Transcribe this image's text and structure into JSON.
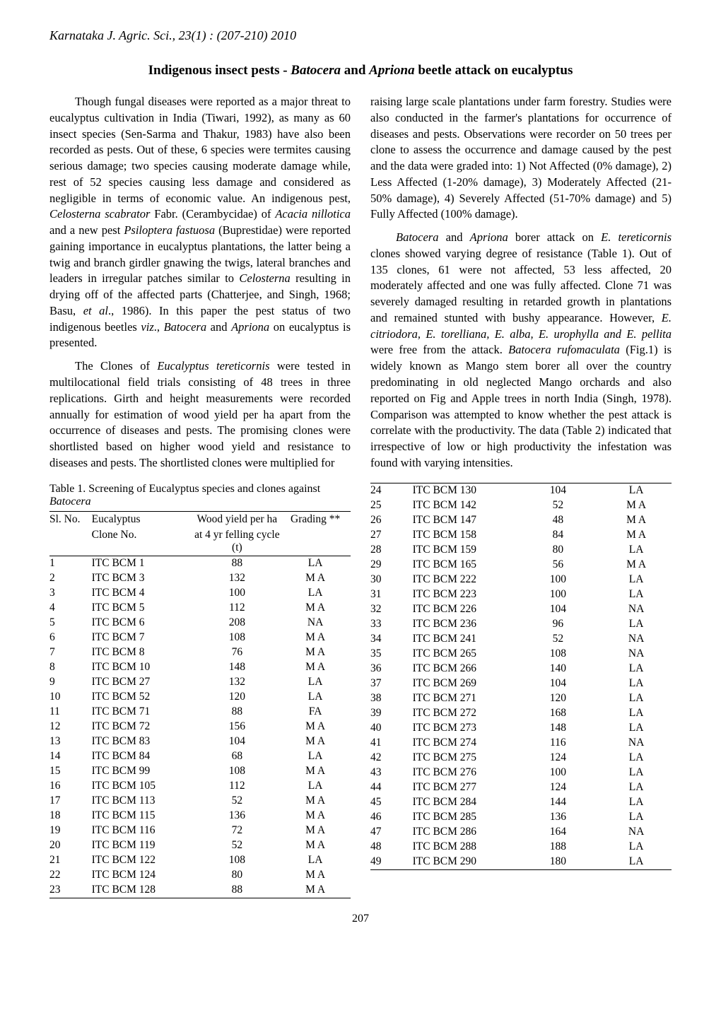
{
  "running_head": "Karnataka J. Agric. Sci., 23(1) : (207-210) 2010",
  "title_pre": "Indigenous insect pests - ",
  "title_ital1": "Batocera",
  "title_mid": " and ",
  "title_ital2": "Apriona",
  "title_post": " beetle attack on eucalyptus",
  "page_number": "207",
  "paragraphs": {
    "p1": "Though fungal diseases were reported as a major threat to eucalyptus cultivation in India (Tiwari, 1992), as many as 60 insect species (Sen-Sarma and Thakur, 1983) have also been recorded as pests. Out of these, 6 species were termites causing serious damage; two species causing moderate damage while, rest of 52 species causing less damage and considered as negligible in terms of economic value. An indigenous pest, Celosterna scabrator Fabr. (Cerambycidae) of Acacia nillotica and a new pest Psiloptera fastuosa (Buprestidae) were reported gaining importance in eucalyptus plantations, the latter being a twig and branch girdler gnawing the twigs, lateral branches and leaders in irregular patches similar to Celosterna resulting in drying off of the affected parts (Chatterjee, and Singh, 1968; Basu, et al., 1986). In this paper the pest status of two indigenous beetles viz., Batocera and Apriona on eucalyptus is presented.",
    "p2": "The Clones of Eucalyptus tereticornis were tested in multilocational field trials consisting of 48 trees in three replications. Girth and height measurements were recorded annually for estimation of wood yield per ha apart from the occurrence of diseases and pests. The promising clones were shortlisted based on higher wood yield and resistance to diseases and pests. The shortlisted clones were multiplied for",
    "p3": "raising large scale plantations under farm forestry. Studies were also conducted in the farmer's plantations for occurrence of diseases and pests. Observations were recorder on 50 trees per clone to assess the occurrence and damage caused by the pest and the data were graded into: 1) Not Affected (0% damage), 2) Less Affected (1-20% damage), 3) Moderately Affected (21-50% damage), 4) Severely Affected (51-70% damage) and 5) Fully Affected (100% damage).",
    "p4": "Batocera and Apriona borer attack on E. tereticornis clones showed varying degree of resistance (Table 1). Out of 135 clones, 61 were not affected, 53 less affected, 20 moderately affected and one was fully affected. Clone 71 was severely damaged resulting in retarded growth in plantations and remained stunted with bushy appearance. However, E. citriodora, E. torelliana, E. alba, E. urophylla and E. pellita were free from the attack. Batocera rufomaculata (Fig.1) is widely known as Mango stem borer all over the country predominating in old neglected Mango orchards and also reported on Fig and Apple trees in north India (Singh, 1978). Comparison was attempted to know whether the pest attack is correlate with the productivity. The data (Table 2) indicated that irrespective of low or high productivity the infestation was found with varying intensities."
  },
  "table1": {
    "caption_pre": "Table 1. Screening of Eucalyptus species and clones against ",
    "caption_ital": "Batocera",
    "headers": {
      "h1": "Sl. No.",
      "h2a": "Eucalyptus",
      "h2b": "Clone No.",
      "h3a": "Wood yield per ha",
      "h3b": "at 4 yr felling cycle (t)",
      "h4": "Grading **"
    },
    "rows_left": [
      {
        "n": "1",
        "c": "ITC BCM 1",
        "y": "88",
        "g": "LA"
      },
      {
        "n": "2",
        "c": "ITC BCM 3",
        "y": "132",
        "g": "M A"
      },
      {
        "n": "3",
        "c": "ITC BCM 4",
        "y": "100",
        "g": "LA"
      },
      {
        "n": "4",
        "c": "ITC BCM 5",
        "y": "112",
        "g": "M A"
      },
      {
        "n": "5",
        "c": "ITC BCM 6",
        "y": "208",
        "g": "NA"
      },
      {
        "n": "6",
        "c": "ITC BCM 7",
        "y": "108",
        "g": "M A"
      },
      {
        "n": "7",
        "c": "ITC BCM 8",
        "y": "76",
        "g": "M A"
      },
      {
        "n": "8",
        "c": "ITC BCM 10",
        "y": "148",
        "g": "M A"
      },
      {
        "n": "9",
        "c": "ITC BCM 27",
        "y": "132",
        "g": "LA"
      },
      {
        "n": "10",
        "c": "ITC BCM 52",
        "y": "120",
        "g": "LA"
      },
      {
        "n": "11",
        "c": "ITC BCM 71",
        "y": "88",
        "g": "FA"
      },
      {
        "n": "12",
        "c": "ITC BCM 72",
        "y": "156",
        "g": "M A"
      },
      {
        "n": "13",
        "c": "ITC BCM 83",
        "y": "104",
        "g": "M A"
      },
      {
        "n": "14",
        "c": "ITC BCM 84",
        "y": "68",
        "g": "LA"
      },
      {
        "n": "15",
        "c": "ITC BCM 99",
        "y": "108",
        "g": "M A"
      },
      {
        "n": "16",
        "c": "ITC BCM 105",
        "y": "112",
        "g": "LA"
      },
      {
        "n": "17",
        "c": "ITC BCM 113",
        "y": "52",
        "g": "M A"
      },
      {
        "n": "18",
        "c": "ITC BCM 115",
        "y": "136",
        "g": "M A"
      },
      {
        "n": "19",
        "c": "ITC BCM 116",
        "y": "72",
        "g": "M A"
      },
      {
        "n": "20",
        "c": "ITC BCM 119",
        "y": "52",
        "g": "M A"
      },
      {
        "n": "21",
        "c": "ITC BCM 122",
        "y": "108",
        "g": "LA"
      },
      {
        "n": "22",
        "c": "ITC BCM 124",
        "y": "80",
        "g": "M A"
      },
      {
        "n": "23",
        "c": "ITC BCM 128",
        "y": "88",
        "g": "M A"
      }
    ],
    "rows_right": [
      {
        "n": "24",
        "c": "ITC BCM 130",
        "y": "104",
        "g": "LA"
      },
      {
        "n": "25",
        "c": "ITC BCM 142",
        "y": "52",
        "g": "M A"
      },
      {
        "n": "26",
        "c": "ITC BCM 147",
        "y": "48",
        "g": "M A"
      },
      {
        "n": "27",
        "c": "ITC BCM 158",
        "y": "84",
        "g": "M A"
      },
      {
        "n": "28",
        "c": "ITC BCM 159",
        "y": "80",
        "g": "LA"
      },
      {
        "n": "29",
        "c": "ITC BCM 165",
        "y": "56",
        "g": "M A"
      },
      {
        "n": "30",
        "c": "ITC BCM 222",
        "y": "100",
        "g": "LA"
      },
      {
        "n": "31",
        "c": "ITC BCM 223",
        "y": "100",
        "g": "LA"
      },
      {
        "n": "32",
        "c": "ITC BCM 226",
        "y": "104",
        "g": "NA"
      },
      {
        "n": "33",
        "c": "ITC BCM 236",
        "y": "96",
        "g": "LA"
      },
      {
        "n": "34",
        "c": "ITC BCM 241",
        "y": "52",
        "g": "NA"
      },
      {
        "n": "35",
        "c": "ITC BCM 265",
        "y": "108",
        "g": "NA"
      },
      {
        "n": "36",
        "c": "ITC BCM 266",
        "y": "140",
        "g": "LA"
      },
      {
        "n": "37",
        "c": "ITC BCM 269",
        "y": "104",
        "g": "LA"
      },
      {
        "n": "38",
        "c": "ITC BCM 271",
        "y": "120",
        "g": "LA"
      },
      {
        "n": "39",
        "c": "ITC BCM 272",
        "y": "168",
        "g": "LA"
      },
      {
        "n": "40",
        "c": "ITC BCM 273",
        "y": "148",
        "g": "LA"
      },
      {
        "n": "41",
        "c": "ITC BCM 274",
        "y": "116",
        "g": "NA"
      },
      {
        "n": "42",
        "c": "ITC BCM 275",
        "y": "124",
        "g": "LA"
      },
      {
        "n": "43",
        "c": "ITC BCM 276",
        "y": "100",
        "g": "LA"
      },
      {
        "n": "44",
        "c": "ITC BCM 277",
        "y": "124",
        "g": "LA"
      },
      {
        "n": "45",
        "c": "ITC BCM 284",
        "y": "144",
        "g": "LA"
      },
      {
        "n": "46",
        "c": "ITC BCM 285",
        "y": "136",
        "g": "LA"
      },
      {
        "n": "47",
        "c": "ITC BCM 286",
        "y": "164",
        "g": "NA"
      },
      {
        "n": "48",
        "c": "ITC BCM 288",
        "y": "188",
        "g": "LA"
      },
      {
        "n": "49",
        "c": "ITC BCM 290",
        "y": "180",
        "g": "LA"
      }
    ]
  }
}
